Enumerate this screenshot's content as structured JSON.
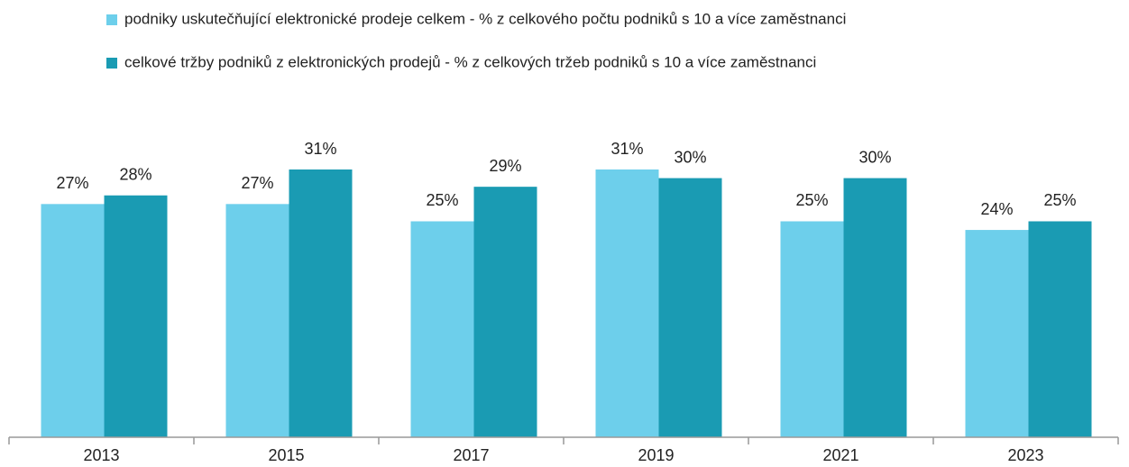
{
  "chart_data": {
    "type": "bar",
    "categories": [
      "2013",
      "2015",
      "2017",
      "2019",
      "2021",
      "2023"
    ],
    "series": [
      {
        "name": "podniky uskutečňující elektronické prodeje celkem - % z celkového počtu podniků s 10 a více zaměstnanci",
        "color": "#6dcfeb",
        "values": [
          27,
          27,
          25,
          31,
          25,
          24
        ],
        "value_labels": [
          "27%",
          "27%",
          "25%",
          "31%",
          "25%",
          "24%"
        ]
      },
      {
        "name": "celkové tržby podniků z elektronických prodejů - % z celkových tržeb podniků s 10 a více zaměstnanci",
        "color": "#1a9bb3",
        "values": [
          28,
          31,
          29,
          30,
          30,
          25
        ],
        "value_labels": [
          "28%",
          "31%",
          "29%",
          "30%",
          "30%",
          "25%"
        ]
      }
    ]
  }
}
